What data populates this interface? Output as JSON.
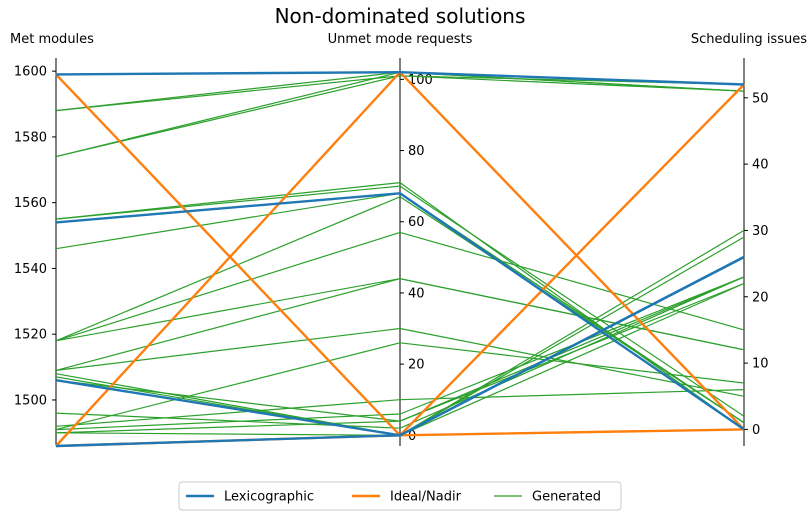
{
  "chart_data": {
    "type": "parallel-coordinates",
    "title": "Non-dominated solutions",
    "axes": [
      {
        "label": "Met modules",
        "range": [
          1486,
          1604
        ],
        "ticks": [
          1500,
          1520,
          1540,
          1560,
          1580,
          1600
        ]
      },
      {
        "label": "Unmet mode requests",
        "range": [
          -3,
          106
        ],
        "ticks": [
          0,
          20,
          40,
          60,
          80,
          100
        ]
      },
      {
        "label": "Scheduling issues",
        "range": [
          -2.5,
          56
        ],
        "ticks": [
          0,
          10,
          20,
          30,
          40,
          50
        ]
      }
    ],
    "legend": {
      "placement": "bottom-center",
      "entries": [
        {
          "label": "Lexicographic",
          "color": "#1f77b4"
        },
        {
          "label": "Ideal/Nadir",
          "color": "#ff7f0e"
        },
        {
          "label": "Generated",
          "color": "#2ca02c"
        }
      ]
    },
    "series": [
      {
        "group": "Lexicographic",
        "color": "#1f77b4",
        "lines": [
          [
            1599,
            102,
            52
          ],
          [
            1554,
            68,
            0
          ],
          [
            1506,
            0,
            26
          ],
          [
            1486,
            0,
            26
          ]
        ]
      },
      {
        "group": "Ideal/Nadir",
        "color": "#ff7f0e",
        "lines": [
          [
            1599,
            0,
            52
          ],
          [
            1486,
            102,
            0
          ],
          [
            1486,
            0,
            0
          ]
        ]
      },
      {
        "group": "Generated",
        "color": "#2ca02c",
        "lines": [
          [
            1588,
            102,
            51
          ],
          [
            1588,
            101,
            52
          ],
          [
            1574,
            102,
            51
          ],
          [
            1574,
            101,
            51
          ],
          [
            1555,
            71,
            0
          ],
          [
            1555,
            70,
            2
          ],
          [
            1554,
            68,
            1
          ],
          [
            1546,
            68,
            1
          ],
          [
            1518,
            67,
            1
          ],
          [
            1518,
            57,
            15
          ],
          [
            1518,
            44,
            12
          ],
          [
            1509,
            44,
            12
          ],
          [
            1509,
            30,
            5
          ],
          [
            1508,
            0,
            30
          ],
          [
            1507,
            0,
            29
          ],
          [
            1506,
            4,
            23
          ],
          [
            1496,
            2,
            23
          ],
          [
            1492,
            10,
            6
          ],
          [
            1491,
            26,
            7
          ],
          [
            1491,
            6,
            23
          ],
          [
            1490,
            4,
            22
          ],
          [
            1490,
            0,
            22
          ]
        ]
      }
    ]
  }
}
